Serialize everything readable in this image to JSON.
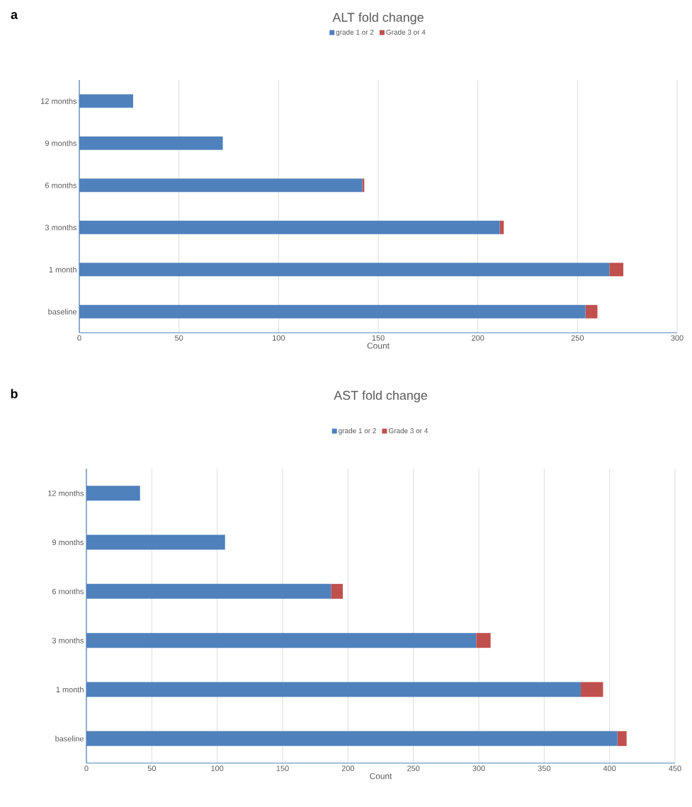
{
  "chart_data": [
    {
      "type": "bar",
      "orientation": "horizontal",
      "stacked": true,
      "title": "ALT fold change",
      "xlabel": "Count",
      "annotations": [
        "a"
      ],
      "categories": [
        "12 months",
        "9 months",
        "6 months",
        "3 months",
        "1 month",
        "baseline"
      ],
      "series": [
        {
          "name": "grade 1 or 2",
          "color": "#4f81bd",
          "values": [
            27,
            72,
            142,
            211,
            266,
            254
          ]
        },
        {
          "name": "Grade 3 or 4",
          "color": "#c0504d",
          "values": [
            0,
            0,
            1,
            2,
            7,
            6
          ]
        }
      ],
      "xlim": [
        0,
        300
      ],
      "xticks": [
        0,
        50,
        100,
        150,
        200,
        250,
        300
      ],
      "grid": "x",
      "legend": "top"
    },
    {
      "type": "bar",
      "orientation": "horizontal",
      "stacked": true,
      "title": "AST fold change",
      "xlabel": "Count",
      "annotations": [
        "b"
      ],
      "categories": [
        "12 months",
        "9 months",
        "6 months",
        "3 months",
        "1 month",
        "baseline"
      ],
      "series": [
        {
          "name": "grade 1 or 2",
          "color": "#4f81bd",
          "values": [
            41,
            106,
            187,
            298,
            378,
            406
          ]
        },
        {
          "name": "Grade 3 or 4",
          "color": "#c0504d",
          "values": [
            0,
            0,
            9,
            11,
            17,
            7
          ]
        }
      ],
      "xlim": [
        0,
        450
      ],
      "xticks": [
        0,
        50,
        100,
        150,
        200,
        250,
        300,
        350,
        400,
        450
      ],
      "grid": "x",
      "legend": "top"
    }
  ]
}
